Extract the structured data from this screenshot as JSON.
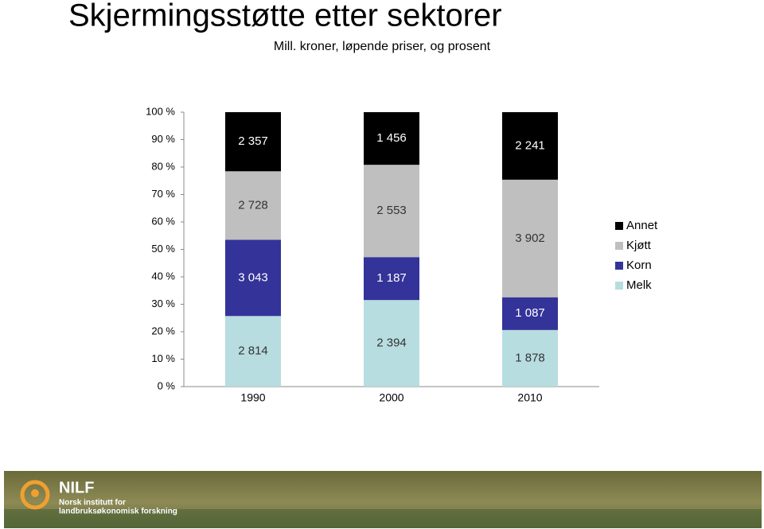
{
  "chart_data": {
    "type": "bar",
    "stacking": "percent",
    "title": "Skjermingsstøtte etter sektorer",
    "subtitle": "Mill. kroner, løpende priser, og prosent",
    "categories": [
      "1990",
      "2000",
      "2010"
    ],
    "series": [
      {
        "name": "Melk",
        "color": "#b7dde0",
        "values": [
          2814,
          2394,
          1878
        ],
        "value_labels": [
          "2 814",
          "2 394",
          "1 878"
        ]
      },
      {
        "name": "Korn",
        "color": "#333399",
        "values": [
          3043,
          1187,
          1087
        ],
        "value_labels": [
          "3 043",
          "1 187",
          "1 087"
        ]
      },
      {
        "name": "Kjøtt",
        "color": "#bfbfbf",
        "values": [
          2728,
          2553,
          3902
        ],
        "value_labels": [
          "2 728",
          "2 553",
          "3 902"
        ]
      },
      {
        "name": "Annet",
        "color": "#000000",
        "values": [
          2357,
          1456,
          2241
        ],
        "value_labels": [
          "2 357",
          "1 456",
          "2 241"
        ]
      }
    ],
    "ylim": [
      0,
      100
    ],
    "yticks": [
      {
        "value": 0,
        "label": "0 %"
      },
      {
        "value": 10,
        "label": "10 %"
      },
      {
        "value": 20,
        "label": "20 %"
      },
      {
        "value": 30,
        "label": "30 %"
      },
      {
        "value": 40,
        "label": "40 %"
      },
      {
        "value": 50,
        "label": "50 %"
      },
      {
        "value": 60,
        "label": "60 %"
      },
      {
        "value": 70,
        "label": "70 %"
      },
      {
        "value": 80,
        "label": "80 %"
      },
      {
        "value": 90,
        "label": "90 %"
      },
      {
        "value": 100,
        "label": "100 %"
      }
    ],
    "grid": false,
    "legend": "right"
  },
  "footer": {
    "logo": "NILF",
    "line1": "Norsk institutt for",
    "line2": "landbruksøkonomisk forskning"
  }
}
